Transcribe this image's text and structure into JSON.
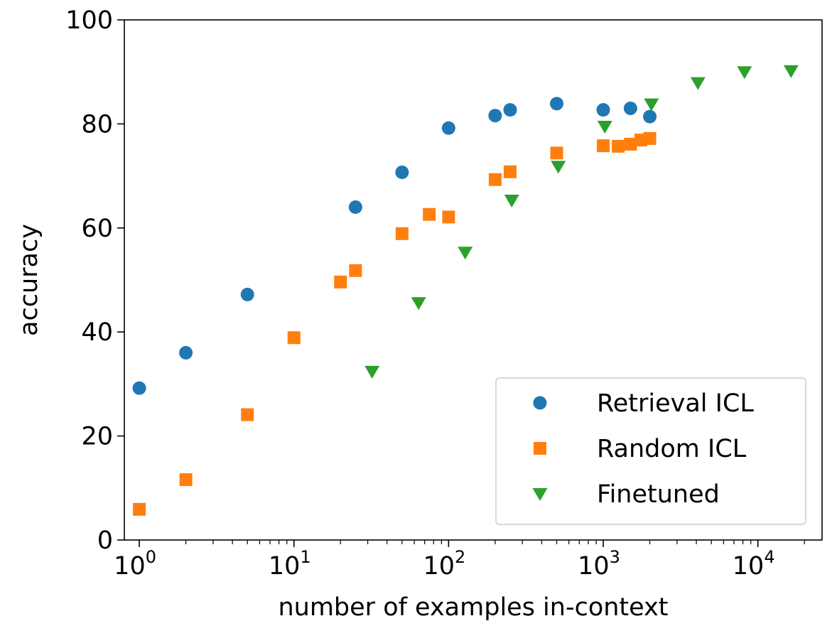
{
  "chart_data": {
    "type": "scatter",
    "title": "",
    "xlabel": "number of examples in-context",
    "ylabel": "accuracy",
    "xscale": "log",
    "xlim": [
      0.8,
      26000
    ],
    "ylim": [
      0,
      100
    ],
    "x_ticks": [
      {
        "base": "10",
        "exp": "0",
        "value": 1
      },
      {
        "base": "10",
        "exp": "1",
        "value": 10
      },
      {
        "base": "10",
        "exp": "2",
        "value": 100
      },
      {
        "base": "10",
        "exp": "3",
        "value": 1000
      },
      {
        "base": "10",
        "exp": "4",
        "value": 10000
      }
    ],
    "y_ticks": [
      "0",
      "20",
      "40",
      "60",
      "80",
      "100"
    ],
    "grid": false,
    "legend_position": "lower-right",
    "series": [
      {
        "name": "Retrieval ICL",
        "marker": "circle",
        "color": "#1f77b4",
        "points": [
          {
            "x": 1,
            "y": 29.2
          },
          {
            "x": 2,
            "y": 36.0
          },
          {
            "x": 5,
            "y": 47.2
          },
          {
            "x": 25,
            "y": 64.0
          },
          {
            "x": 50,
            "y": 70.7
          },
          {
            "x": 100,
            "y": 79.2
          },
          {
            "x": 200,
            "y": 81.6
          },
          {
            "x": 250,
            "y": 82.7
          },
          {
            "x": 500,
            "y": 83.9
          },
          {
            "x": 1000,
            "y": 82.7
          },
          {
            "x": 1500,
            "y": 83.0
          },
          {
            "x": 2000,
            "y": 81.4
          }
        ]
      },
      {
        "name": "Random ICL",
        "marker": "square",
        "color": "#ff7f0e",
        "points": [
          {
            "x": 1,
            "y": 5.9
          },
          {
            "x": 2,
            "y": 11.6
          },
          {
            "x": 5,
            "y": 24.1
          },
          {
            "x": 10,
            "y": 38.9
          },
          {
            "x": 20,
            "y": 49.6
          },
          {
            "x": 25,
            "y": 51.8
          },
          {
            "x": 50,
            "y": 58.9
          },
          {
            "x": 75,
            "y": 62.6
          },
          {
            "x": 100,
            "y": 62.1
          },
          {
            "x": 200,
            "y": 69.3
          },
          {
            "x": 250,
            "y": 70.8
          },
          {
            "x": 500,
            "y": 74.4
          },
          {
            "x": 1000,
            "y": 75.8
          },
          {
            "x": 1250,
            "y": 75.7
          },
          {
            "x": 1500,
            "y": 76.1
          },
          {
            "x": 1750,
            "y": 76.9
          },
          {
            "x": 2000,
            "y": 77.2
          }
        ]
      },
      {
        "name": "Finetuned",
        "marker": "triangle-down",
        "color": "#2ca02c",
        "points": [
          {
            "x": 32,
            "y": 32.4
          },
          {
            "x": 64,
            "y": 45.6
          },
          {
            "x": 128,
            "y": 55.3
          },
          {
            "x": 256,
            "y": 65.3
          },
          {
            "x": 512,
            "y": 71.8
          },
          {
            "x": 1024,
            "y": 79.5
          },
          {
            "x": 2048,
            "y": 83.8
          },
          {
            "x": 4096,
            "y": 87.9
          },
          {
            "x": 8192,
            "y": 90.0
          },
          {
            "x": 16384,
            "y": 90.2
          }
        ]
      }
    ]
  }
}
